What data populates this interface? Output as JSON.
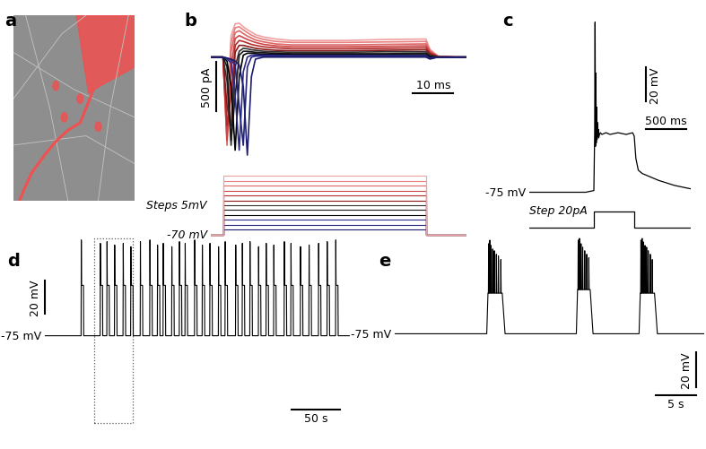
{
  "chart_data": [
    {
      "label": "a",
      "type": "image",
      "tick_labels": false
    },
    {
      "label": "b",
      "type": "line",
      "tick_labels": false,
      "xlim": [
        -3,
        60
      ],
      "ylim": [
        -1100,
        455
      ],
      "x": [
        -3,
        0,
        1,
        2,
        3,
        4,
        5,
        6,
        7,
        8,
        10,
        13,
        17,
        22,
        30,
        40,
        50,
        51,
        53,
        57,
        60
      ],
      "series": [
        {
          "color": "#1c1c6e",
          "values": [
            0,
            0,
            -10,
            -20,
            -40,
            -80,
            -300,
            -1000,
            -200,
            -20,
            0,
            0,
            0,
            0,
            0,
            0,
            0,
            -20,
            0,
            0,
            0
          ]
        },
        {
          "color": "#23237d",
          "values": [
            0,
            0,
            -10,
            -30,
            -80,
            -500,
            -900,
            -100,
            0,
            10,
            10,
            10,
            10,
            10,
            10,
            10,
            10,
            -10,
            0,
            0,
            0
          ]
        },
        {
          "color": "#2b2b8c",
          "values": [
            0,
            0,
            -20,
            -60,
            -400,
            -950,
            -150,
            0,
            20,
            20,
            20,
            20,
            15,
            15,
            15,
            15,
            15,
            -10,
            0,
            0,
            0
          ]
        },
        {
          "color": "#000000",
          "values": [
            0,
            0,
            -40,
            -300,
            -950,
            -200,
            20,
            40,
            40,
            35,
            30,
            30,
            25,
            25,
            25,
            25,
            25,
            0,
            0,
            0,
            0
          ]
        },
        {
          "color": "#1a1a1a",
          "values": [
            0,
            0,
            -100,
            -850,
            -400,
            20,
            60,
            60,
            55,
            50,
            45,
            40,
            35,
            35,
            35,
            35,
            40,
            10,
            0,
            0,
            0
          ]
        },
        {
          "color": "#333333",
          "values": [
            0,
            0,
            -250,
            -900,
            -100,
            60,
            90,
            85,
            75,
            70,
            60,
            55,
            50,
            50,
            50,
            55,
            55,
            20,
            0,
            0,
            0
          ]
        },
        {
          "color": "#8b1a1a",
          "values": [
            0,
            0,
            -500,
            -700,
            50,
            120,
            120,
            110,
            100,
            90,
            80,
            70,
            65,
            65,
            65,
            70,
            75,
            30,
            0,
            0,
            0
          ]
        },
        {
          "color": "#b22a2a",
          "values": [
            0,
            0,
            -700,
            -400,
            120,
            170,
            160,
            145,
            130,
            120,
            105,
            95,
            85,
            85,
            85,
            90,
            95,
            40,
            5,
            0,
            0
          ]
        },
        {
          "color": "#cc4444",
          "values": [
            0,
            0,
            -850,
            -100,
            190,
            220,
            200,
            180,
            165,
            150,
            130,
            115,
            105,
            105,
            105,
            110,
            115,
            50,
            5,
            0,
            0
          ]
        },
        {
          "color": "#dd6666",
          "values": [
            0,
            0,
            -900,
            60,
            250,
            270,
            240,
            215,
            195,
            175,
            155,
            135,
            125,
            125,
            125,
            130,
            135,
            60,
            5,
            0,
            0
          ]
        },
        {
          "color": "#e88080",
          "values": [
            0,
            0,
            -800,
            150,
            300,
            310,
            280,
            250,
            225,
            205,
            180,
            160,
            150,
            150,
            150,
            155,
            160,
            70,
            10,
            0,
            0
          ]
        },
        {
          "color": "#f0a0a0",
          "values": [
            0,
            0,
            -650,
            220,
            340,
            345,
            310,
            280,
            255,
            230,
            205,
            185,
            170,
            170,
            170,
            180,
            185,
            80,
            10,
            0,
            0
          ]
        }
      ],
      "scale_bars": [
        {
          "axis": "y",
          "value": 500,
          "label": "500 pA"
        },
        {
          "axis": "x",
          "value": 10,
          "label": "10 ms"
        }
      ],
      "protocol": {
        "start": 0,
        "end": 50,
        "baseline": -70,
        "baseline_label": "-70 mV",
        "steps": [
          -65,
          -60,
          -55,
          -50,
          -45,
          -40,
          -35,
          -30,
          -25,
          -20,
          -15,
          -10
        ],
        "annotation": "Steps 5mV",
        "ylim": [
          -72,
          -8
        ]
      }
    },
    {
      "label": "c",
      "type": "line",
      "tick_labels": false,
      "color": "#000000",
      "xlim": [
        -800,
        1200
      ],
      "ylim": [
        -80,
        28
      ],
      "x": [
        -800,
        -400,
        -100,
        0,
        10,
        15,
        20,
        25,
        30,
        35,
        40,
        45,
        50,
        55,
        60,
        70,
        80,
        100,
        150,
        200,
        300,
        400,
        480,
        500,
        520,
        550,
        600,
        700,
        800,
        1000,
        1200
      ],
      "values": [
        -75,
        -75,
        -75,
        -74,
        -40,
        25,
        -48,
        -5,
        -46,
        -25,
        -44,
        -34,
        -42,
        -38,
        -43,
        -41,
        -40,
        -41,
        -40,
        -41,
        -40,
        -41,
        -40,
        -42,
        -55,
        -62,
        -64,
        -66,
        -68,
        -71,
        -73
      ],
      "baseline": -75,
      "baseline_label": "-75 mV",
      "scale_bars": [
        {
          "axis": "y",
          "value": 20,
          "label": "20 mV"
        },
        {
          "axis": "x",
          "value": 500,
          "label": "500 ms"
        }
      ],
      "stimulus": {
        "start": 0,
        "end": 500,
        "baseline": 0,
        "amplitude": 20,
        "label": "Step 20pA",
        "ylim": [
          -5,
          30
        ]
      }
    },
    {
      "label": "d",
      "type": "bursts",
      "tick_labels": false,
      "color": "#000000",
      "xlim": [
        0,
        320
      ],
      "ylim": [
        -128,
        -16
      ],
      "baseline": -75,
      "baseline_label": "-75 mV",
      "burst_times": [
        38,
        58,
        65,
        73,
        82,
        90,
        100,
        110,
        118,
        124,
        133,
        141,
        147,
        157,
        165,
        173,
        182,
        189,
        200,
        207,
        215,
        224,
        232,
        240,
        251,
        258,
        268,
        277,
        287,
        296,
        305
      ],
      "burst_peaks": [
        -18,
        -20,
        -19,
        -21,
        -20,
        -22,
        -19,
        -18,
        -21,
        -20,
        -22,
        -19,
        -20,
        -18,
        -21,
        -20,
        -22,
        -19,
        -21,
        -20,
        -19,
        -22,
        -20,
        -21,
        -19,
        -20,
        -22,
        -21,
        -20,
        -19,
        -18
      ],
      "burst_plateau": -45,
      "burst_duration": 2.5,
      "highlight": [
        52,
        92
      ],
      "scale_bars": [
        {
          "axis": "y",
          "value": 20,
          "label": "20 mV"
        },
        {
          "axis": "x",
          "value": 50,
          "label": "50 s"
        }
      ]
    },
    {
      "label": "e",
      "type": "bursts",
      "tick_labels": false,
      "color": "#000000",
      "xlim": [
        0,
        38
      ],
      "ylim": [
        -124,
        -20
      ],
      "baseline": -75,
      "baseline_label": "-75 mV",
      "bursts": [
        {
          "start": 11.3,
          "end": 13.2,
          "plateau": -52,
          "spikes": [
            11.5,
            11.65,
            11.8,
            12.0,
            12.2,
            12.45,
            12.7,
            13.0
          ],
          "spike_peaks": [
            -24,
            -22,
            -25,
            -27,
            -28,
            -30,
            -31,
            -33
          ]
        },
        {
          "start": 22.3,
          "end": 24.0,
          "plateau": -50,
          "spikes": [
            22.5,
            22.65,
            22.85,
            23.05,
            23.3,
            23.55,
            23.8
          ],
          "spike_peaks": [
            -22,
            -21,
            -24,
            -26,
            -28,
            -30,
            -32
          ]
        },
        {
          "start": 30.0,
          "end": 31.9,
          "plateau": -52,
          "spikes": [
            30.2,
            30.35,
            30.5,
            30.7,
            30.9,
            31.1,
            31.35,
            31.6
          ],
          "spike_peaks": [
            -22,
            -21,
            -23,
            -25,
            -26,
            -28,
            -30,
            -33
          ]
        }
      ],
      "scale_bars": [
        {
          "axis": "y",
          "value": 20,
          "label": "20 mV"
        },
        {
          "axis": "x",
          "value": 5,
          "label": "5 s"
        }
      ]
    }
  ]
}
